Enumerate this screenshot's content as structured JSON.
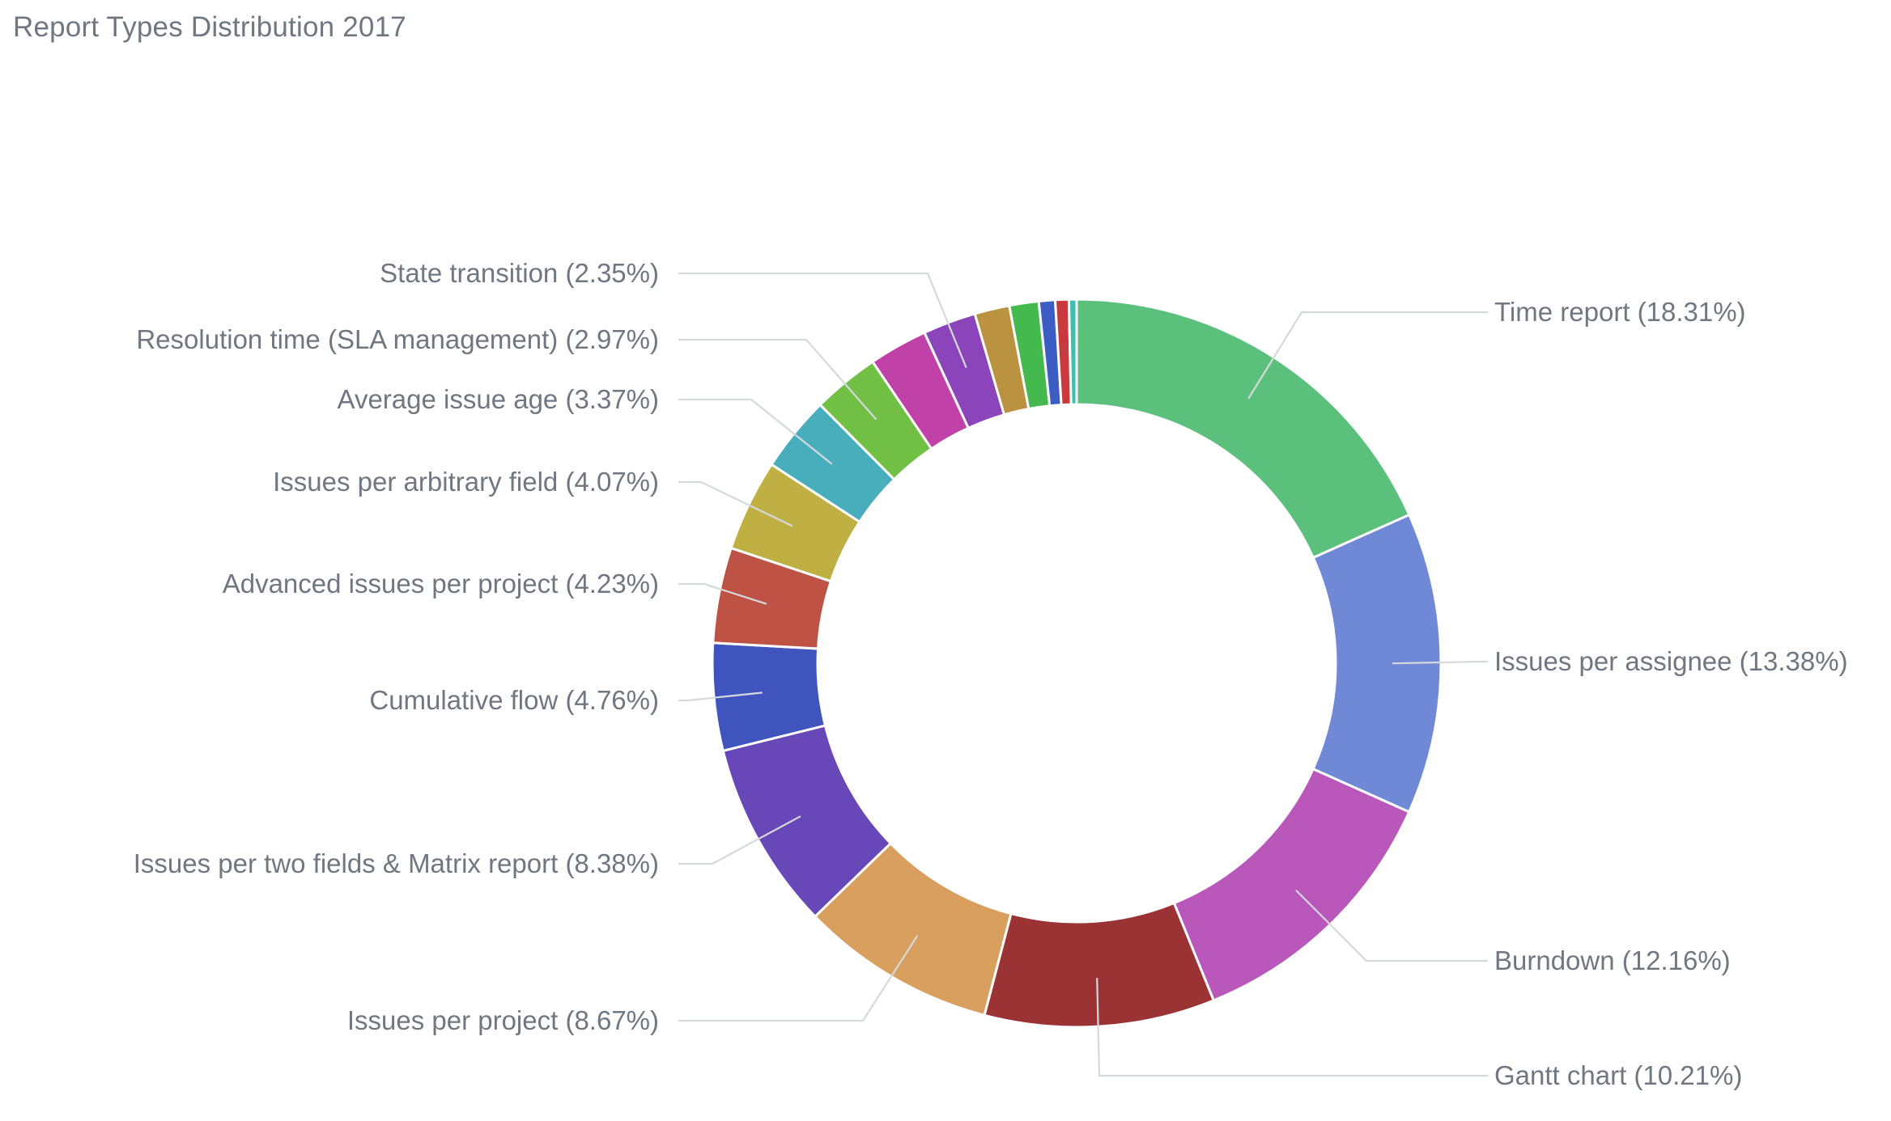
{
  "chart_data": {
    "type": "pie",
    "variant": "donut",
    "title": "Report Types Distribution 2017",
    "legend": "none",
    "slices": [
      {
        "label": "Time report (18.31%)",
        "name": "Time report",
        "value": 18.31,
        "color": "#5bc07c",
        "show_label": true
      },
      {
        "label": "Issues per assignee (13.38%)",
        "name": "Issues per assignee",
        "value": 13.38,
        "color": "#7089d6",
        "show_label": true
      },
      {
        "label": "Burndown (12.16%)",
        "name": "Burndown",
        "value": 12.16,
        "color": "#b957bb",
        "show_label": true
      },
      {
        "label": "Gantt chart (10.21%)",
        "name": "Gantt chart",
        "value": 10.21,
        "color": "#9b3234",
        "show_label": true
      },
      {
        "label": "Issues per project (8.67%)",
        "name": "Issues per project",
        "value": 8.67,
        "color": "#d89f5f",
        "show_label": true
      },
      {
        "label": "Issues per two fields & Matrix report (8.38%)",
        "name": "Issues per two fields & Matrix report",
        "value": 8.38,
        "color": "#6847b8",
        "show_label": true
      },
      {
        "label": "Cumulative flow (4.76%)",
        "name": "Cumulative flow",
        "value": 4.76,
        "color": "#4054bd",
        "show_label": true
      },
      {
        "label": "Advanced issues per project (4.23%)",
        "name": "Advanced issues per project",
        "value": 4.23,
        "color": "#bd5245",
        "show_label": true
      },
      {
        "label": "Issues per arbitrary field (4.07%)",
        "name": "Issues per arbitrary field",
        "value": 4.07,
        "color": "#c0b044",
        "show_label": true
      },
      {
        "label": "Average issue age (3.37%)",
        "name": "Average issue age",
        "value": 3.37,
        "color": "#48aebc",
        "show_label": true
      },
      {
        "label": "Resolution time (SLA management) (2.97%)",
        "name": "Resolution time (SLA management)",
        "value": 2.97,
        "color": "#72bf45",
        "show_label": true
      },
      {
        "label": "",
        "name": "",
        "value": 2.6,
        "color": "#c042a8",
        "show_label": false
      },
      {
        "label": "State transition (2.35%)",
        "name": "State transition",
        "value": 2.35,
        "color": "#8c44bb",
        "show_label": true
      },
      {
        "label": "",
        "name": "",
        "value": 1.55,
        "color": "#bb9240",
        "show_label": false
      },
      {
        "label": "",
        "name": "",
        "value": 1.3,
        "color": "#44b94d",
        "show_label": false
      },
      {
        "label": "",
        "name": "",
        "value": 0.72,
        "color": "#3c5ec4",
        "show_label": false
      },
      {
        "label": "",
        "name": "",
        "value": 0.6,
        "color": "#c93a3e",
        "show_label": false
      },
      {
        "label": "",
        "name": "",
        "value": 0.34,
        "color": "#3fbfae",
        "show_label": false
      }
    ]
  }
}
